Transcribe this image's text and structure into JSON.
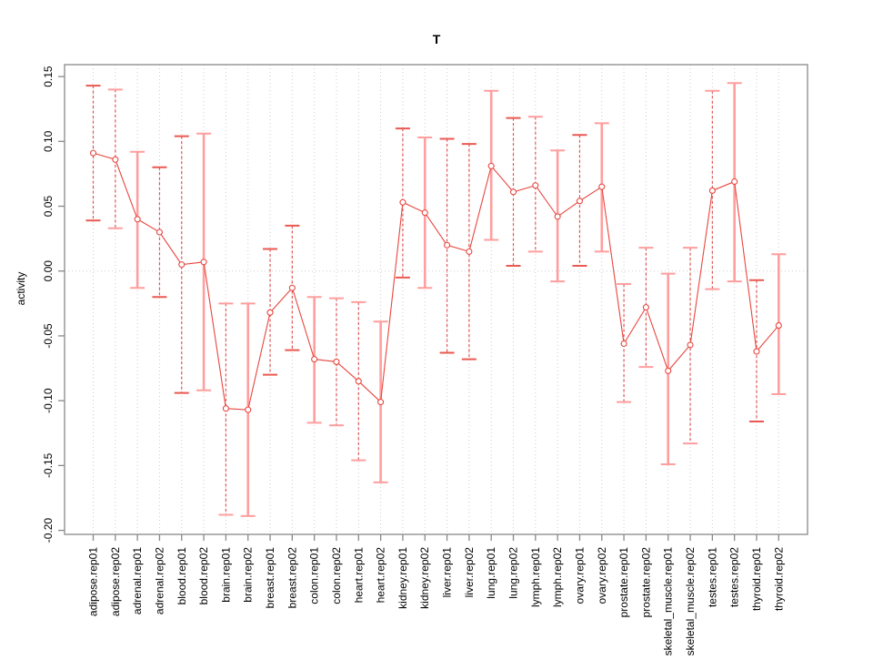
{
  "window": {
    "background": "#ffffff"
  },
  "chart_data": {
    "type": "line",
    "title": "T",
    "xlabel": "",
    "ylabel": "activity",
    "legend": "none",
    "grid": "dotted vertical gridline at every category; dotted horizontal line at y=0",
    "ylim": [
      -0.2031,
      0.1592
    ],
    "yticks": [
      0.15,
      0.1,
      0.05,
      0.0,
      -0.05,
      -0.1,
      -0.15,
      -0.2
    ],
    "ytick_labels": [
      "0.15",
      "0.10",
      "0.05",
      "0.00",
      "-0.05",
      "-0.10",
      "-0.15",
      "-0.20"
    ],
    "categories": [
      "adipose.rep01",
      "adipose.rep02",
      "adrenal.rep01",
      "adrenal.rep02",
      "blood.rep01",
      "blood.rep02",
      "brain.rep01",
      "brain.rep02",
      "breast.rep01",
      "breast.rep02",
      "colon.rep01",
      "colon.rep02",
      "heart.rep01",
      "heart.rep02",
      "kidney.rep01",
      "kidney.rep02",
      "liver.rep01",
      "liver.rep02",
      "lung.rep01",
      "lung.rep02",
      "lymph.rep01",
      "lymph.rep02",
      "ovary.rep01",
      "ovary.rep02",
      "prostate.rep01",
      "prostate.rep02",
      "skeletal_muscle.rep01",
      "skeletal_muscle.rep02",
      "testes.rep01",
      "testes.rep02",
      "thyroid.rep01",
      "thyroid.rep02"
    ],
    "series": [
      {
        "name": "activity",
        "marker": "open-circle",
        "values": [
          0.091,
          0.086,
          0.04,
          0.03,
          0.005,
          0.007,
          -0.106,
          -0.107,
          -0.032,
          -0.013,
          -0.068,
          -0.07,
          -0.085,
          -0.101,
          0.053,
          0.045,
          0.02,
          0.015,
          0.081,
          0.061,
          0.066,
          0.042,
          0.054,
          0.065,
          -0.056,
          -0.028,
          -0.077,
          -0.057,
          0.062,
          0.069,
          -0.062,
          -0.042
        ],
        "error_high": [
          0.143,
          0.14,
          0.092,
          0.08,
          0.104,
          0.106,
          -0.025,
          -0.025,
          0.017,
          0.035,
          -0.02,
          -0.021,
          -0.024,
          -0.039,
          0.11,
          0.103,
          0.102,
          0.098,
          0.139,
          0.118,
          0.119,
          0.093,
          0.105,
          0.114,
          -0.01,
          0.018,
          -0.002,
          0.018,
          0.139,
          0.145,
          -0.007,
          0.013
        ],
        "error_low": [
          0.039,
          0.033,
          -0.013,
          -0.02,
          -0.094,
          -0.092,
          -0.188,
          -0.189,
          -0.08,
          -0.061,
          -0.117,
          -0.119,
          -0.146,
          -0.163,
          -0.005,
          -0.013,
          -0.063,
          -0.068,
          0.024,
          0.004,
          0.015,
          -0.008,
          0.004,
          0.015,
          -0.101,
          -0.074,
          -0.149,
          -0.133,
          -0.014,
          -0.008,
          -0.116,
          -0.095
        ],
        "bar_styles": [
          "dashed",
          "dashed",
          "solid",
          "dashed",
          "dashed",
          "solid",
          "dashed",
          "solid",
          "dashed",
          "dashed",
          "solid",
          "dashed",
          "dashed",
          "solid",
          "dashed",
          "solid",
          "dashed",
          "dashed",
          "solid",
          "dashed",
          "dashed",
          "solid",
          "dashed",
          "solid",
          "dashed",
          "dashed",
          "solid",
          "dashed",
          "dashed",
          "solid",
          "dashed",
          "solid"
        ],
        "cap_colors": [
          "dark",
          "light",
          "light",
          "dark",
          "dark",
          "light",
          "light",
          "light",
          "dark",
          "dark",
          "light",
          "light",
          "light",
          "light",
          "dark",
          "light",
          "dark",
          "dark",
          "light",
          "dark",
          "light",
          "light",
          "dark",
          "light",
          "light",
          "light",
          "light",
          "light",
          "light",
          "light",
          "dark",
          "light"
        ]
      }
    ],
    "colors": {
      "line": "#e8463f",
      "marker_fill": "#ffffff",
      "bar_dashed": "#e25555",
      "bar_solid": "#ff9e9e",
      "cap_dark": "#ea5951",
      "cap_light": "#ff9e9e",
      "grid": "#cdcdcd",
      "axis": "#888888",
      "text": "#000000"
    }
  }
}
